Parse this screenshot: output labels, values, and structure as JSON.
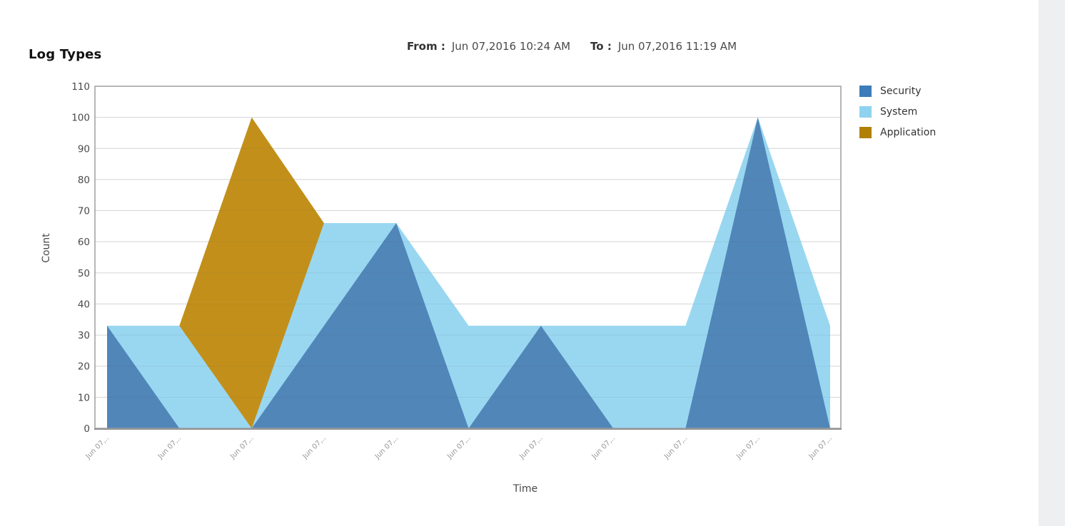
{
  "header": {
    "from_label": "From :",
    "from_value": "Jun 07,2016 10:24 AM",
    "to_label": "To :",
    "to_value": "Jun 07,2016 11:19 AM"
  },
  "chart_data": {
    "type": "area",
    "title": "Log Types",
    "xlabel": "Time",
    "ylabel": "Count",
    "ylim": [
      0,
      110
    ],
    "ytick_step": 10,
    "grid": true,
    "legend_position": "right",
    "categories": [
      "Jun 07,..",
      "Jun 07,..",
      "Jun 07,..",
      "Jun 07,..",
      "Jun 07,..",
      "Jun 07,..",
      "Jun 07,..",
      "Jun 07,..",
      "Jun 07,..",
      "Jun 07,..",
      "Jun 07,.."
    ],
    "series": [
      {
        "name": "Security",
        "color": "#5186b9",
        "legend_color": "#3c7cb8",
        "values": [
          33,
          0,
          0,
          33,
          66,
          0,
          33,
          0,
          0,
          100,
          0
        ]
      },
      {
        "name": "System",
        "color": "#99d7f1",
        "legend_color": "#8ed2f0",
        "values": [
          33,
          33,
          0,
          66,
          66,
          33,
          33,
          33,
          33,
          100,
          33
        ]
      },
      {
        "name": "Application",
        "color": "#c2901a",
        "legend_color": "#b08004",
        "values": [
          0,
          33,
          100,
          66,
          0,
          0,
          0,
          0,
          0,
          0,
          0
        ]
      }
    ],
    "draw_order": [
      "Application",
      "System",
      "Security"
    ]
  },
  "colors": {
    "grid_line": "#e4e4e4",
    "plot_border": "#9e9e9e",
    "baseline": "#949494",
    "y_tick_text": "#4a4a4a",
    "x_tick_text": "#979797",
    "right_strip": "#edeff0"
  }
}
